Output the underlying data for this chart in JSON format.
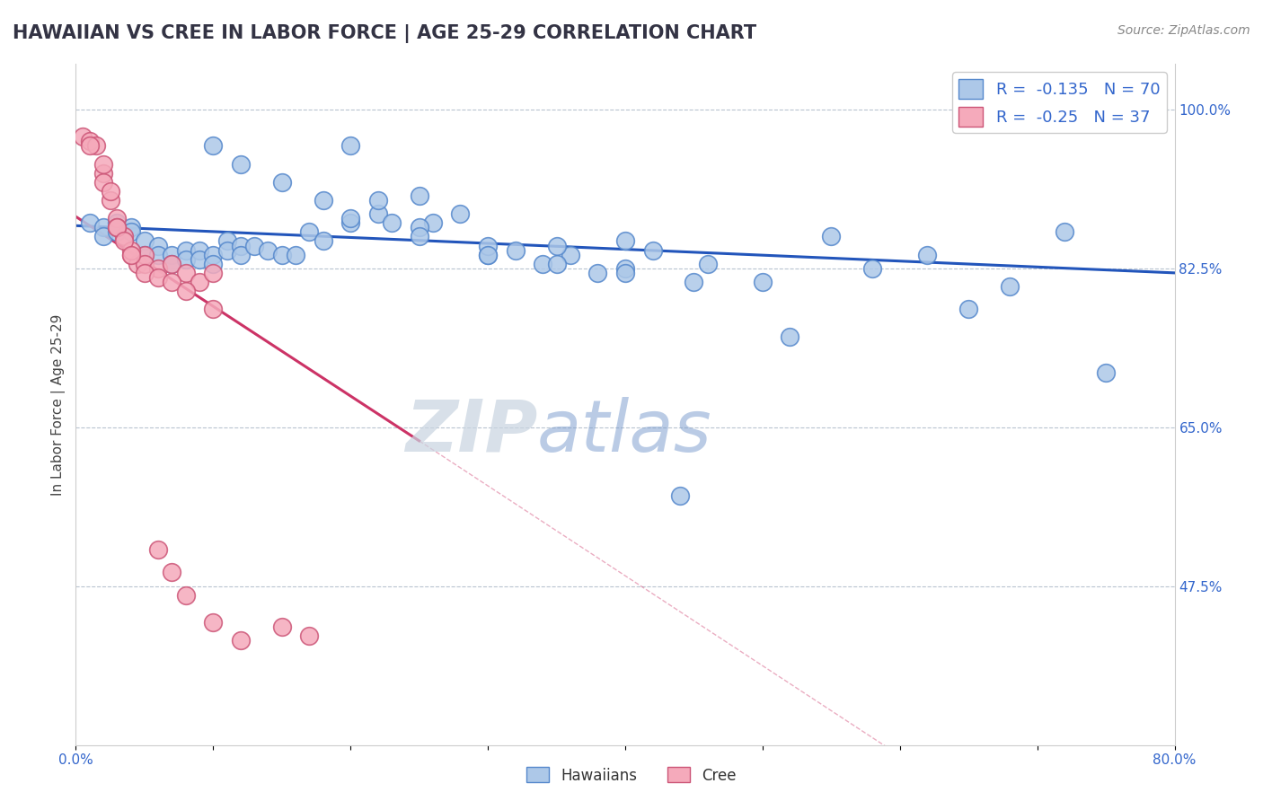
{
  "title": "HAWAIIAN VS CREE IN LABOR FORCE | AGE 25-29 CORRELATION CHART",
  "source_text": "Source: ZipAtlas.com",
  "ylabel": "In Labor Force | Age 25-29",
  "xlim": [
    0.0,
    0.8
  ],
  "ylim": [
    0.3,
    1.05
  ],
  "ytick_values": [
    0.475,
    0.65,
    0.825,
    1.0
  ],
  "ytick_labels": [
    "47.5%",
    "65.0%",
    "82.5%",
    "100.0%"
  ],
  "xtick_values": [
    0.0,
    0.1,
    0.2,
    0.3,
    0.4,
    0.5,
    0.6,
    0.7,
    0.8
  ],
  "xtick_labels": [
    "0.0%",
    "",
    "",
    "",
    "",
    "",
    "",
    "",
    "80.0%"
  ],
  "hawaiian_R": -0.135,
  "hawaiian_N": 70,
  "cree_R": -0.25,
  "cree_N": 37,
  "hawaiian_color": "#adc8e8",
  "hawaiian_edge": "#5588cc",
  "cree_color": "#f5aabb",
  "cree_edge": "#cc5577",
  "trend_hawaiian_color": "#2255bb",
  "trend_cree_color": "#cc3366",
  "watermark_gray": "#c8d4e0",
  "watermark_blue": "#7799cc",
  "hawaiian_x": [
    0.01,
    0.02,
    0.02,
    0.03,
    0.03,
    0.04,
    0.04,
    0.05,
    0.05,
    0.06,
    0.06,
    0.07,
    0.07,
    0.08,
    0.08,
    0.09,
    0.09,
    0.1,
    0.1,
    0.11,
    0.11,
    0.12,
    0.12,
    0.13,
    0.14,
    0.15,
    0.16,
    0.17,
    0.18,
    0.2,
    0.22,
    0.23,
    0.25,
    0.26,
    0.28,
    0.3,
    0.32,
    0.34,
    0.36,
    0.38,
    0.4,
    0.42,
    0.44,
    0.46,
    0.5,
    0.52,
    0.55,
    0.58,
    0.62,
    0.65,
    0.68,
    0.72,
    0.75,
    0.77,
    0.2,
    0.22,
    0.25,
    0.3,
    0.35,
    0.4,
    0.1,
    0.12,
    0.15,
    0.18,
    0.2,
    0.25,
    0.3,
    0.35,
    0.4,
    0.45
  ],
  "hawaiian_y": [
    0.875,
    0.87,
    0.86,
    0.875,
    0.865,
    0.87,
    0.865,
    0.855,
    0.84,
    0.85,
    0.84,
    0.84,
    0.83,
    0.845,
    0.835,
    0.845,
    0.835,
    0.84,
    0.83,
    0.855,
    0.845,
    0.85,
    0.84,
    0.85,
    0.845,
    0.84,
    0.84,
    0.865,
    0.855,
    0.875,
    0.885,
    0.875,
    0.905,
    0.875,
    0.885,
    0.84,
    0.845,
    0.83,
    0.84,
    0.82,
    0.855,
    0.845,
    0.575,
    0.83,
    0.81,
    0.75,
    0.86,
    0.825,
    0.84,
    0.78,
    0.805,
    0.865,
    0.71,
    1.0,
    0.96,
    0.9,
    0.87,
    0.85,
    0.85,
    0.825,
    0.96,
    0.94,
    0.92,
    0.9,
    0.88,
    0.86,
    0.84,
    0.83,
    0.82,
    0.81
  ],
  "cree_x": [
    0.005,
    0.01,
    0.015,
    0.02,
    0.025,
    0.03,
    0.035,
    0.04,
    0.045,
    0.05,
    0.01,
    0.02,
    0.03,
    0.04,
    0.05,
    0.06,
    0.07,
    0.08,
    0.09,
    0.1,
    0.02,
    0.025,
    0.03,
    0.035,
    0.04,
    0.05,
    0.06,
    0.07,
    0.08,
    0.1,
    0.06,
    0.07,
    0.08,
    0.1,
    0.12,
    0.15,
    0.17
  ],
  "cree_y": [
    0.97,
    0.965,
    0.96,
    0.93,
    0.9,
    0.88,
    0.86,
    0.84,
    0.83,
    0.84,
    0.96,
    0.92,
    0.87,
    0.845,
    0.83,
    0.825,
    0.83,
    0.82,
    0.81,
    0.82,
    0.94,
    0.91,
    0.87,
    0.855,
    0.84,
    0.82,
    0.815,
    0.81,
    0.8,
    0.78,
    0.515,
    0.49,
    0.465,
    0.435,
    0.415,
    0.43,
    0.42
  ]
}
